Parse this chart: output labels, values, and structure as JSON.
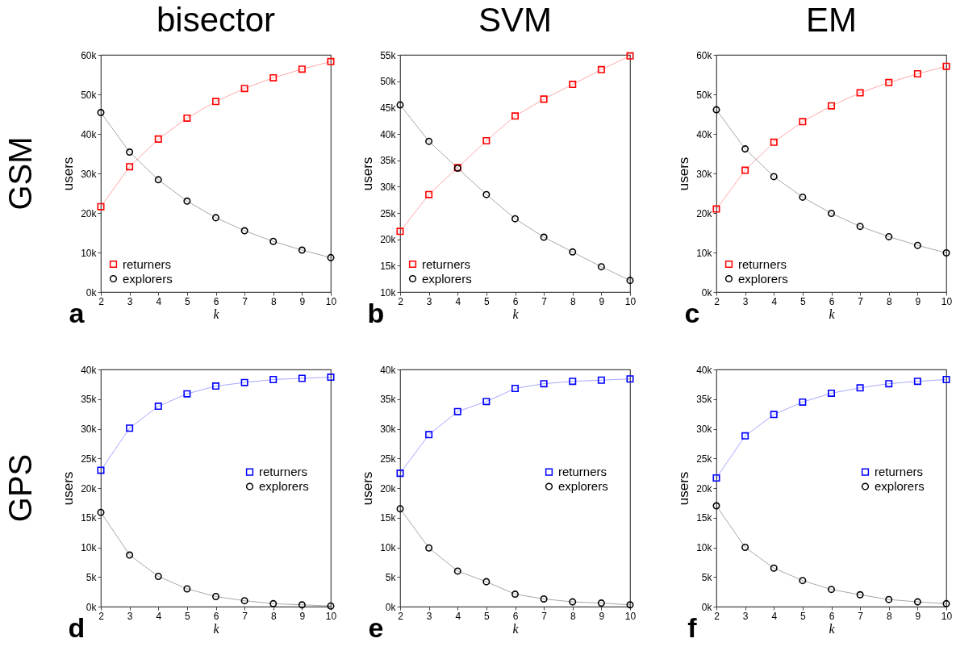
{
  "chart_data": [
    {
      "type": "line",
      "title": "bisector",
      "xlabel": "k",
      "ylabel": "users",
      "annotations": [
        "GSM",
        "a"
      ],
      "legend": "bottom left",
      "x": [
        2,
        3,
        4,
        5,
        6,
        7,
        8,
        9,
        10
      ],
      "xlim": [
        2,
        10
      ],
      "xticks": [
        2,
        3,
        4,
        5,
        6,
        7,
        8,
        9,
        10
      ],
      "ylim": [
        0,
        60000
      ],
      "yticks": [
        {
          "value": 0,
          "label": "0k"
        },
        {
          "value": 10000,
          "label": "10k"
        },
        {
          "value": 20000,
          "label": "20k"
        },
        {
          "value": 30000,
          "label": "30k"
        },
        {
          "value": 40000,
          "label": "40k"
        },
        {
          "value": 50000,
          "label": "50k"
        },
        {
          "value": 60000,
          "label": "60k"
        }
      ],
      "series": [
        {
          "name": "returners",
          "color": "#ff0000",
          "marker": "square",
          "values": [
            21600,
            31700,
            38700,
            44000,
            48200,
            51500,
            54200,
            56400,
            58300
          ]
        },
        {
          "name": "explorers",
          "color": "#000000",
          "marker": "circle",
          "values": [
            45400,
            35400,
            28400,
            23000,
            18800,
            15500,
            12800,
            10600,
            8700
          ]
        }
      ]
    },
    {
      "type": "line",
      "title": "SVM",
      "xlabel": "k",
      "ylabel": "users",
      "annotations": [
        "b"
      ],
      "legend": "bottom left",
      "x": [
        2,
        3,
        4,
        5,
        6,
        7,
        8,
        9,
        10
      ],
      "xlim": [
        2,
        10
      ],
      "xticks": [
        2,
        3,
        4,
        5,
        6,
        7,
        8,
        9,
        10
      ],
      "ylim": [
        10000,
        55000
      ],
      "yticks": [
        {
          "value": 10000,
          "label": "10k"
        },
        {
          "value": 15000,
          "label": "15k"
        },
        {
          "value": 20000,
          "label": "20k"
        },
        {
          "value": 25000,
          "label": "25k"
        },
        {
          "value": 30000,
          "label": "30k"
        },
        {
          "value": 35000,
          "label": "35k"
        },
        {
          "value": 40000,
          "label": "40k"
        },
        {
          "value": 45000,
          "label": "45k"
        },
        {
          "value": 50000,
          "label": "50k"
        },
        {
          "value": 55000,
          "label": "55k"
        }
      ],
      "series": [
        {
          "name": "returners",
          "color": "#ff0000",
          "marker": "square",
          "values": [
            21500,
            28500,
            33600,
            38700,
            43400,
            46600,
            49400,
            52200,
            54800
          ]
        },
        {
          "name": "explorers",
          "color": "#000000",
          "marker": "circle",
          "values": [
            45500,
            38600,
            33500,
            28500,
            23900,
            20400,
            17600,
            14800,
            12200
          ]
        }
      ]
    },
    {
      "type": "line",
      "title": "EM",
      "xlabel": "k",
      "ylabel": "users",
      "annotations": [
        "c"
      ],
      "legend": "bottom left",
      "x": [
        2,
        3,
        4,
        5,
        6,
        7,
        8,
        9,
        10
      ],
      "xlim": [
        2,
        10
      ],
      "xticks": [
        2,
        3,
        4,
        5,
        6,
        7,
        8,
        9,
        10
      ],
      "ylim": [
        0,
        60000
      ],
      "yticks": [
        {
          "value": 0,
          "label": "0k"
        },
        {
          "value": 10000,
          "label": "10k"
        },
        {
          "value": 20000,
          "label": "20k"
        },
        {
          "value": 30000,
          "label": "30k"
        },
        {
          "value": 40000,
          "label": "40k"
        },
        {
          "value": 50000,
          "label": "50k"
        },
        {
          "value": 60000,
          "label": "60k"
        }
      ],
      "series": [
        {
          "name": "returners",
          "color": "#ff0000",
          "marker": "square",
          "values": [
            21000,
            30800,
            37900,
            43100,
            47100,
            50400,
            53000,
            55200,
            57100
          ]
        },
        {
          "name": "explorers",
          "color": "#000000",
          "marker": "circle",
          "values": [
            46100,
            36200,
            29200,
            24000,
            19900,
            16600,
            14000,
            11800,
            9900
          ]
        }
      ]
    },
    {
      "type": "line",
      "xlabel": "k",
      "ylabel": "users",
      "annotations": [
        "GPS",
        "d"
      ],
      "legend": "right",
      "x": [
        2,
        3,
        4,
        5,
        6,
        7,
        8,
        9,
        10
      ],
      "xlim": [
        2,
        10
      ],
      "xticks": [
        2,
        3,
        4,
        5,
        6,
        7,
        8,
        9,
        10
      ],
      "ylim": [
        0,
        40000
      ],
      "yticks": [
        {
          "value": 0,
          "label": "0k"
        },
        {
          "value": 5000,
          "label": "5k"
        },
        {
          "value": 10000,
          "label": "10k"
        },
        {
          "value": 15000,
          "label": "15k"
        },
        {
          "value": 20000,
          "label": "20k"
        },
        {
          "value": 25000,
          "label": "25k"
        },
        {
          "value": 30000,
          "label": "30k"
        },
        {
          "value": 35000,
          "label": "35k"
        },
        {
          "value": 40000,
          "label": "40k"
        }
      ],
      "series": [
        {
          "name": "returners",
          "color": "#0000ff",
          "marker": "square",
          "values": [
            23000,
            30100,
            33800,
            35900,
            37200,
            37800,
            38300,
            38500,
            38700
          ]
        },
        {
          "name": "explorers",
          "color": "#000000",
          "marker": "circle",
          "values": [
            15900,
            8700,
            5100,
            3000,
            1700,
            1000,
            500,
            300,
            100
          ]
        }
      ]
    },
    {
      "type": "line",
      "xlabel": "k",
      "ylabel": "users",
      "annotations": [
        "e"
      ],
      "legend": "right",
      "x": [
        2,
        3,
        4,
        5,
        6,
        7,
        8,
        9,
        10
      ],
      "xlim": [
        2,
        10
      ],
      "xticks": [
        2,
        3,
        4,
        5,
        6,
        7,
        8,
        9,
        10
      ],
      "ylim": [
        0,
        40000
      ],
      "yticks": [
        {
          "value": 0,
          "label": "0k"
        },
        {
          "value": 5000,
          "label": "5k"
        },
        {
          "value": 10000,
          "label": "10k"
        },
        {
          "value": 15000,
          "label": "15k"
        },
        {
          "value": 20000,
          "label": "20k"
        },
        {
          "value": 25000,
          "label": "25k"
        },
        {
          "value": 30000,
          "label": "30k"
        },
        {
          "value": 35000,
          "label": "35k"
        },
        {
          "value": 40000,
          "label": "40k"
        }
      ],
      "series": [
        {
          "name": "returners",
          "color": "#0000ff",
          "marker": "square",
          "values": [
            22500,
            29000,
            32900,
            34600,
            36800,
            37600,
            38000,
            38200,
            38400
          ]
        },
        {
          "name": "explorers",
          "color": "#000000",
          "marker": "circle",
          "values": [
            16500,
            9900,
            6000,
            4200,
            2100,
            1300,
            800,
            600,
            300
          ]
        }
      ]
    },
    {
      "type": "line",
      "xlabel": "k",
      "ylabel": "users",
      "annotations": [
        "f"
      ],
      "legend": "right",
      "x": [
        2,
        3,
        4,
        5,
        6,
        7,
        8,
        9,
        10
      ],
      "xlim": [
        2,
        10
      ],
      "xticks": [
        2,
        3,
        4,
        5,
        6,
        7,
        8,
        9,
        10
      ],
      "ylim": [
        0,
        40000
      ],
      "yticks": [
        {
          "value": 0,
          "label": "0k"
        },
        {
          "value": 5000,
          "label": "5k"
        },
        {
          "value": 10000,
          "label": "10k"
        },
        {
          "value": 15000,
          "label": "15k"
        },
        {
          "value": 20000,
          "label": "20k"
        },
        {
          "value": 25000,
          "label": "25k"
        },
        {
          "value": 30000,
          "label": "30k"
        },
        {
          "value": 35000,
          "label": "35k"
        },
        {
          "value": 40000,
          "label": "40k"
        }
      ],
      "series": [
        {
          "name": "returners",
          "color": "#0000ff",
          "marker": "square",
          "values": [
            21700,
            28800,
            32400,
            34500,
            36000,
            36900,
            37600,
            38000,
            38300
          ]
        },
        {
          "name": "explorers",
          "color": "#000000",
          "marker": "circle",
          "values": [
            17000,
            10000,
            6500,
            4400,
            2900,
            2000,
            1200,
            800,
            500
          ]
        }
      ]
    }
  ]
}
